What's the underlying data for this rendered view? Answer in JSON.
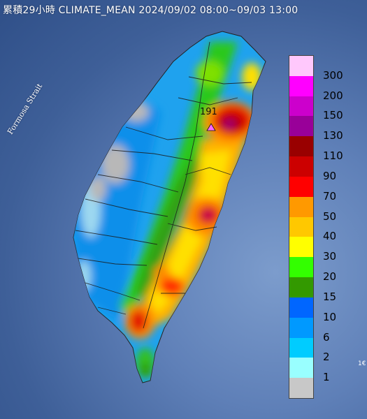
{
  "title": "累積29小時 CLIMATE_MEAN 2024/09/02 08:00~09/03 13:00",
  "strait_label": "Formosa Strait",
  "peak_label": "191",
  "corner_label": "1€",
  "legend": [
    {
      "label": "300",
      "color": "#ffc8fc"
    },
    {
      "label": "200",
      "color": "#ff00ff"
    },
    {
      "label": "150",
      "color": "#cc00cc"
    },
    {
      "label": "130",
      "color": "#990099"
    },
    {
      "label": "110",
      "color": "#990000"
    },
    {
      "label": "90",
      "color": "#cc0000"
    },
    {
      "label": "70",
      "color": "#ff0000"
    },
    {
      "label": "50",
      "color": "#ff9900"
    },
    {
      "label": "40",
      "color": "#ffc800"
    },
    {
      "label": "30",
      "color": "#ffff00"
    },
    {
      "label": "20",
      "color": "#33ff00"
    },
    {
      "label": "15",
      "color": "#339900"
    },
    {
      "label": "10",
      "color": "#0066ff"
    },
    {
      "label": "6",
      "color": "#0099ff"
    },
    {
      "label": "2",
      "color": "#00ccff"
    },
    {
      "label": "1",
      "color": "#99ffff"
    },
    {
      "label": "",
      "color": "#c8c8c8"
    }
  ]
}
